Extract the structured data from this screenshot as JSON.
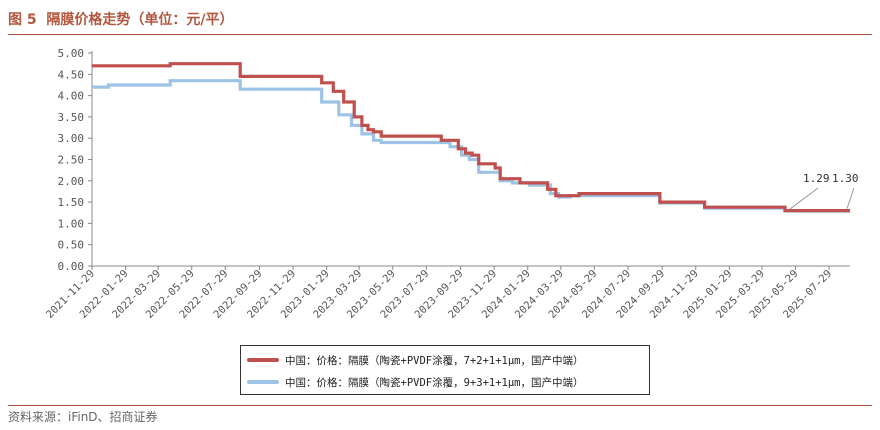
{
  "header": {
    "figure_no": "图 5",
    "title": "隔膜价格走势（单位：元/平）"
  },
  "footer": {
    "source": "资料来源：iFinD、招商证券"
  },
  "colors": {
    "accent": "#b3573f",
    "series1": "#c0504d",
    "series2": "#9dc3e6"
  },
  "chart_data": {
    "type": "line",
    "title": "隔膜价格走势（单位：元/平）",
    "xlabel": "",
    "ylabel": "",
    "ylim": [
      0,
      5
    ],
    "xlim": [
      "2021-11-29",
      "2025-09-05"
    ],
    "yticks": [
      "0.00",
      "0.50",
      "1.00",
      "1.50",
      "2.00",
      "2.50",
      "3.00",
      "3.50",
      "4.00",
      "4.50",
      "5.00"
    ],
    "xticks": [
      "2021-11-29",
      "2022-01-29",
      "2022-03-29",
      "2022-05-29",
      "2022-07-29",
      "2022-09-29",
      "2022-11-29",
      "2023-01-29",
      "2023-03-29",
      "2023-05-29",
      "2023-07-29",
      "2023-09-29",
      "2023-11-29",
      "2024-01-29",
      "2024-03-29",
      "2024-05-29",
      "2024-07-29",
      "2024-09-29",
      "2024-11-29",
      "2025-01-29",
      "2025-03-29",
      "2025-05-29",
      "2025-07-29"
    ],
    "grid": false,
    "legend": "bottom",
    "series": [
      {
        "name": "中国：价格：隔膜（陶瓷+PVDF涂覆，7+2+1+1μm，国产中端）",
        "color": "#c0504d",
        "step": true,
        "points": [
          [
            "2021-11-29",
            4.7
          ],
          [
            "2022-04-20",
            4.75
          ],
          [
            "2022-08-25",
            4.45
          ],
          [
            "2023-01-20",
            4.3
          ],
          [
            "2023-02-10",
            4.1
          ],
          [
            "2023-03-01",
            3.85
          ],
          [
            "2023-03-20",
            3.5
          ],
          [
            "2023-04-03",
            3.3
          ],
          [
            "2023-04-14",
            3.2
          ],
          [
            "2023-04-24",
            3.15
          ],
          [
            "2023-05-08",
            3.05
          ],
          [
            "2023-08-25",
            2.95
          ],
          [
            "2023-09-25",
            2.75
          ],
          [
            "2023-10-08",
            2.65
          ],
          [
            "2023-10-20",
            2.6
          ],
          [
            "2023-11-01",
            2.4
          ],
          [
            "2023-12-01",
            2.3
          ],
          [
            "2023-12-10",
            2.05
          ],
          [
            "2024-01-15",
            1.95
          ],
          [
            "2024-03-05",
            1.8
          ],
          [
            "2024-03-20",
            1.65
          ],
          [
            "2024-04-01",
            1.65
          ],
          [
            "2024-05-01",
            1.7
          ],
          [
            "2024-09-25",
            1.5
          ],
          [
            "2024-12-15",
            1.38
          ],
          [
            "2025-05-10",
            1.3
          ],
          [
            "2025-09-05",
            1.3
          ]
        ]
      },
      {
        "name": "中国：价格：隔膜（陶瓷+PVDF涂覆，9+3+1+1μm，国产中端）",
        "color": "#9dc3e6",
        "step": true,
        "points": [
          [
            "2021-11-29",
            4.2
          ],
          [
            "2021-12-29",
            4.25
          ],
          [
            "2022-04-20",
            4.35
          ],
          [
            "2022-08-25",
            4.15
          ],
          [
            "2023-01-20",
            3.85
          ],
          [
            "2023-02-20",
            3.55
          ],
          [
            "2023-03-15",
            3.3
          ],
          [
            "2023-04-03",
            3.1
          ],
          [
            "2023-04-24",
            2.95
          ],
          [
            "2023-05-08",
            2.9
          ],
          [
            "2023-09-10",
            2.8
          ],
          [
            "2023-10-01",
            2.6
          ],
          [
            "2023-10-15",
            2.5
          ],
          [
            "2023-11-01",
            2.2
          ],
          [
            "2023-12-10",
            2.0
          ],
          [
            "2024-01-01",
            1.95
          ],
          [
            "2024-02-01",
            1.9
          ],
          [
            "2024-03-10",
            1.7
          ],
          [
            "2024-03-25",
            1.62
          ],
          [
            "2024-04-15",
            1.65
          ],
          [
            "2024-09-25",
            1.48
          ],
          [
            "2024-12-15",
            1.36
          ],
          [
            "2025-05-10",
            1.29
          ],
          [
            "2025-09-05",
            1.29
          ]
        ]
      }
    ],
    "annotations": [
      {
        "text": "1.29",
        "series": 1,
        "x": "2025-05-10",
        "y": 1.29
      },
      {
        "text": "1.30",
        "series": 0,
        "x": "2025-09-05",
        "y": 1.3
      }
    ]
  }
}
